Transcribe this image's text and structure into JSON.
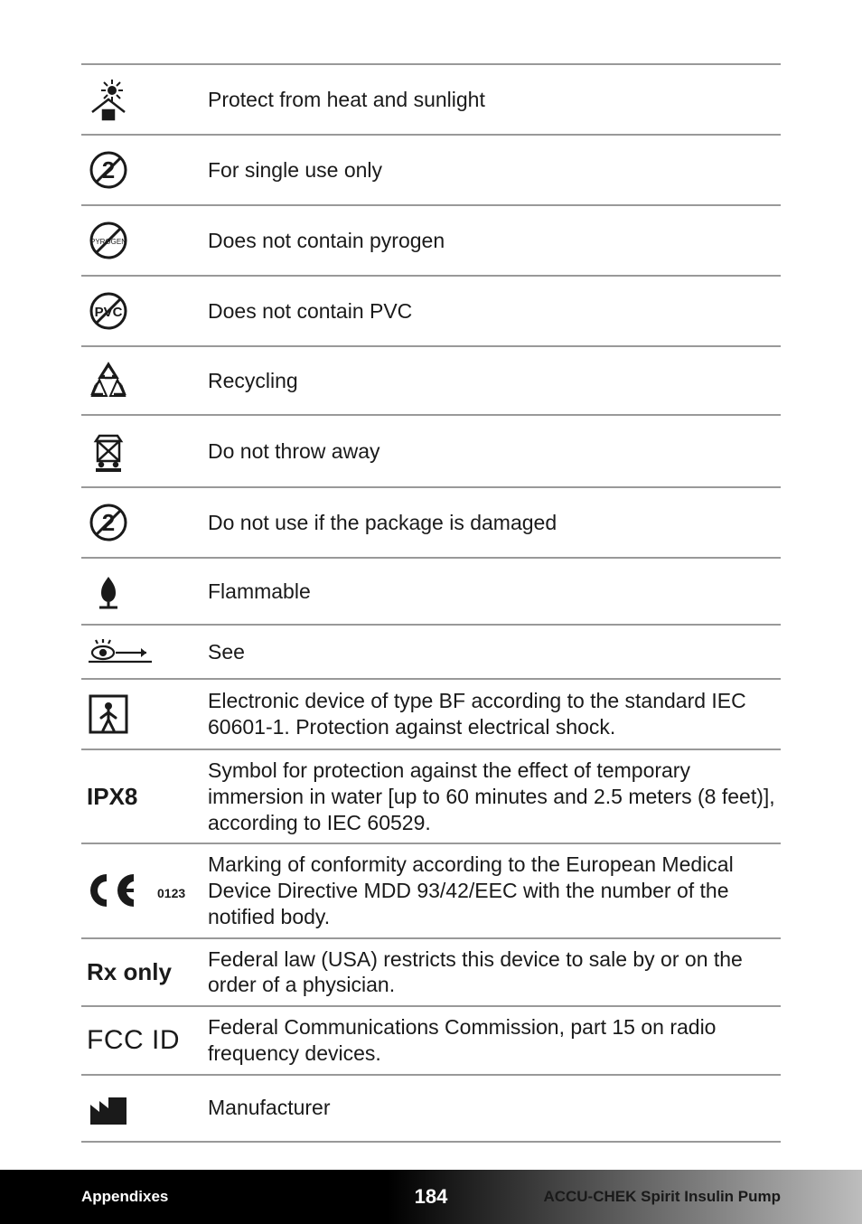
{
  "rows": [
    {
      "icon": "heat-sun-icon",
      "label_key": "IPXnone",
      "label": "",
      "text": "Protect from heat and sunlight"
    },
    {
      "icon": "single-use-icon",
      "label": "",
      "text": "For single use only"
    },
    {
      "icon": "no-pyrogen-icon",
      "label": "",
      "text": "Does not contain pyrogen"
    },
    {
      "icon": "no-pvc-icon",
      "label": "",
      "text": "Does not contain PVC"
    },
    {
      "icon": "recycling-icon",
      "label": "",
      "text": "Recycling"
    },
    {
      "icon": "weee-icon",
      "label": "",
      "text": "Do not throw away"
    },
    {
      "icon": "damaged-package-icon",
      "label": "",
      "text": "Do not use if the package is damaged"
    },
    {
      "icon": "flammable-icon",
      "label": "",
      "text": "Flammable"
    },
    {
      "icon": "see-icon",
      "label": "",
      "text": "See",
      "tight": true
    },
    {
      "icon": "type-bf-icon",
      "label": "",
      "text": "Electronic device of type BF according to the standard IEC 60601-1. Protection against electrical shock.",
      "tight": true
    },
    {
      "icon": "",
      "label": "IPX8",
      "text": "Symbol for protection against the effect of temporary immersion in water [up to 60 minutes and 2.5 meters (8 feet)], according to IEC 60529.",
      "tight": true
    },
    {
      "icon": "ce-mark-icon",
      "label": "",
      "text": "Marking of conformity according to the European Medical Device Directive MDD 93/42/EEC with the number of the notified body.",
      "tight": true
    },
    {
      "icon": "",
      "label": "Rx only",
      "text": "Federal law (USA) restricts this device to sale by or on the order of a physician.",
      "tight": true
    },
    {
      "icon": "",
      "label": "FCC ID",
      "label_class": "label-fcc",
      "text": "Federal Communications Commission, part 15 on radio frequency devices.",
      "tight": true
    },
    {
      "icon": "manufacturer-icon",
      "label": "",
      "text": "Manufacturer"
    }
  ],
  "footer": {
    "left": "Appendixes",
    "page": "184",
    "right": "ACCU-CHEK Spirit Insulin Pump"
  },
  "colors": {
    "rule": "#999999",
    "text": "#1a1a1a",
    "bg": "#ffffff"
  }
}
